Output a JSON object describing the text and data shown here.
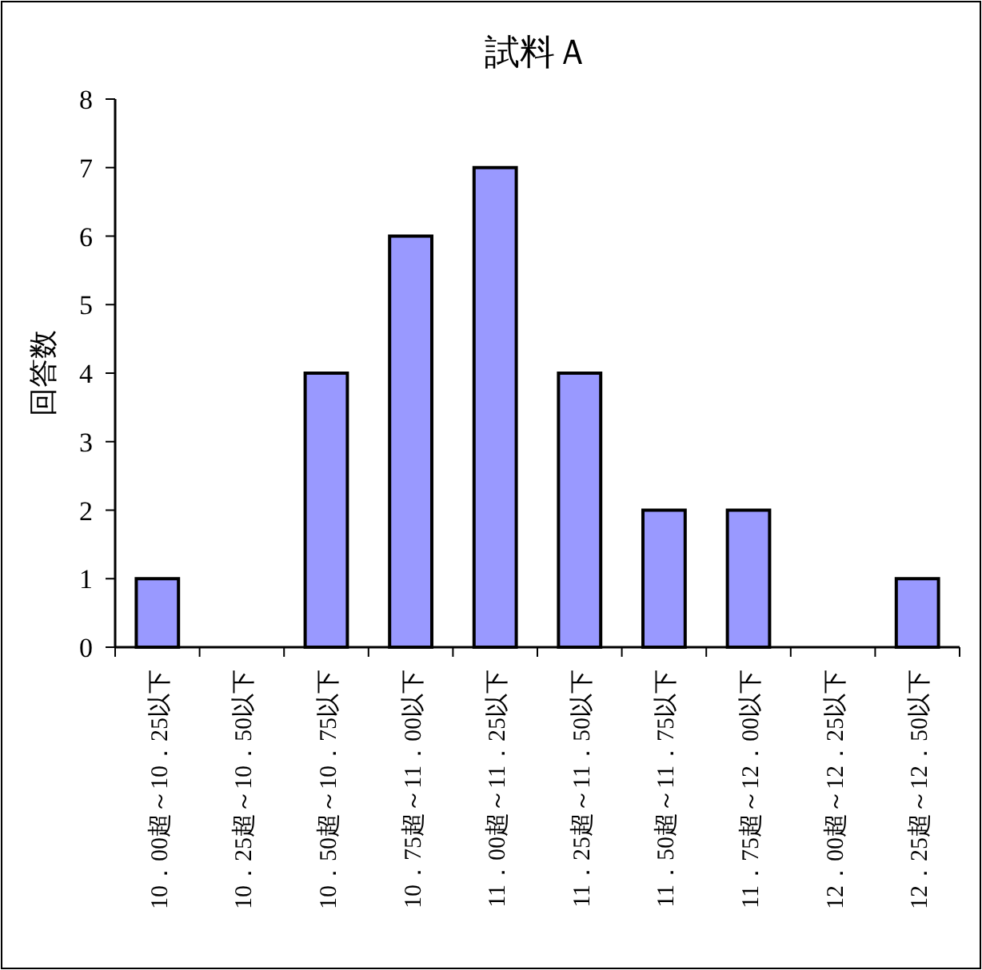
{
  "chart_data": {
    "type": "bar",
    "title": "試料Ａ",
    "ylabel": "回答数",
    "categories": [
      "10．00超～10．25以下",
      "10．25超～10．50以下",
      "10．50超～10．75以下",
      "10．75超～11．00以下",
      "11．00超～11．25以下",
      "11．25超～11．50以下",
      "11．50超～11．75以下",
      "11．75超～12．00以下",
      "12．00超～12．25以下",
      "12．25超～12．50以下"
    ],
    "values": [
      1,
      0,
      4,
      6,
      7,
      4,
      2,
      2,
      0,
      1
    ],
    "color": "#9999ff",
    "ylim": [
      0,
      8
    ],
    "yticks": [
      0,
      1,
      2,
      3,
      4,
      5,
      6,
      7,
      8
    ],
    "grid": false
  }
}
